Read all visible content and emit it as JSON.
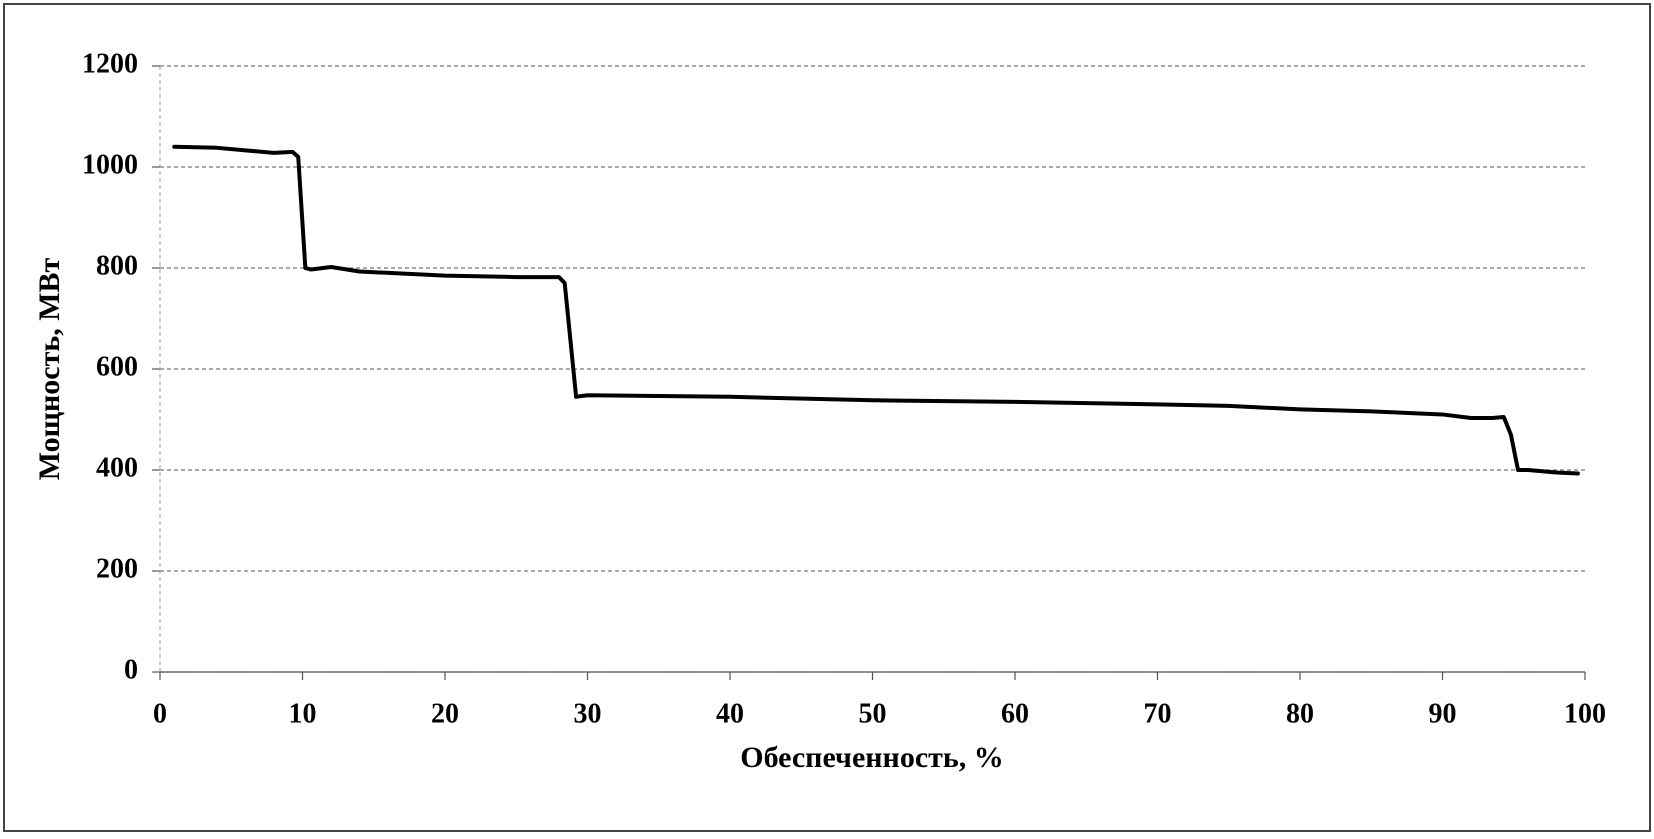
{
  "chart_data": {
    "type": "line",
    "x_label": "Обеспеченность, %",
    "y_label": "Мощность, МВт",
    "x": [
      1,
      4,
      6,
      8,
      9.3,
      9.7,
      10.2,
      10.6,
      12,
      14,
      20,
      25,
      28,
      28.4,
      29.2,
      30,
      40,
      50,
      60,
      70,
      75,
      80,
      85,
      90,
      92,
      93.5,
      94.3,
      94.8,
      95.3,
      96,
      98,
      99.5
    ],
    "values": [
      1040,
      1038,
      1033,
      1028,
      1030,
      1020,
      800,
      797,
      802,
      793,
      785,
      782,
      782,
      770,
      545,
      548,
      545,
      538,
      535,
      530,
      527,
      520,
      516,
      510,
      503,
      503,
      505,
      470,
      400,
      400,
      395,
      393
    ],
    "color": "#000000",
    "xlim": [
      0,
      100
    ],
    "xticks": [
      0,
      10,
      20,
      30,
      40,
      50,
      60,
      70,
      80,
      90,
      100
    ],
    "ylim": [
      0,
      1200
    ],
    "yticks": [
      0,
      200,
      400,
      600,
      800,
      1000,
      1200
    ],
    "grid": true
  }
}
